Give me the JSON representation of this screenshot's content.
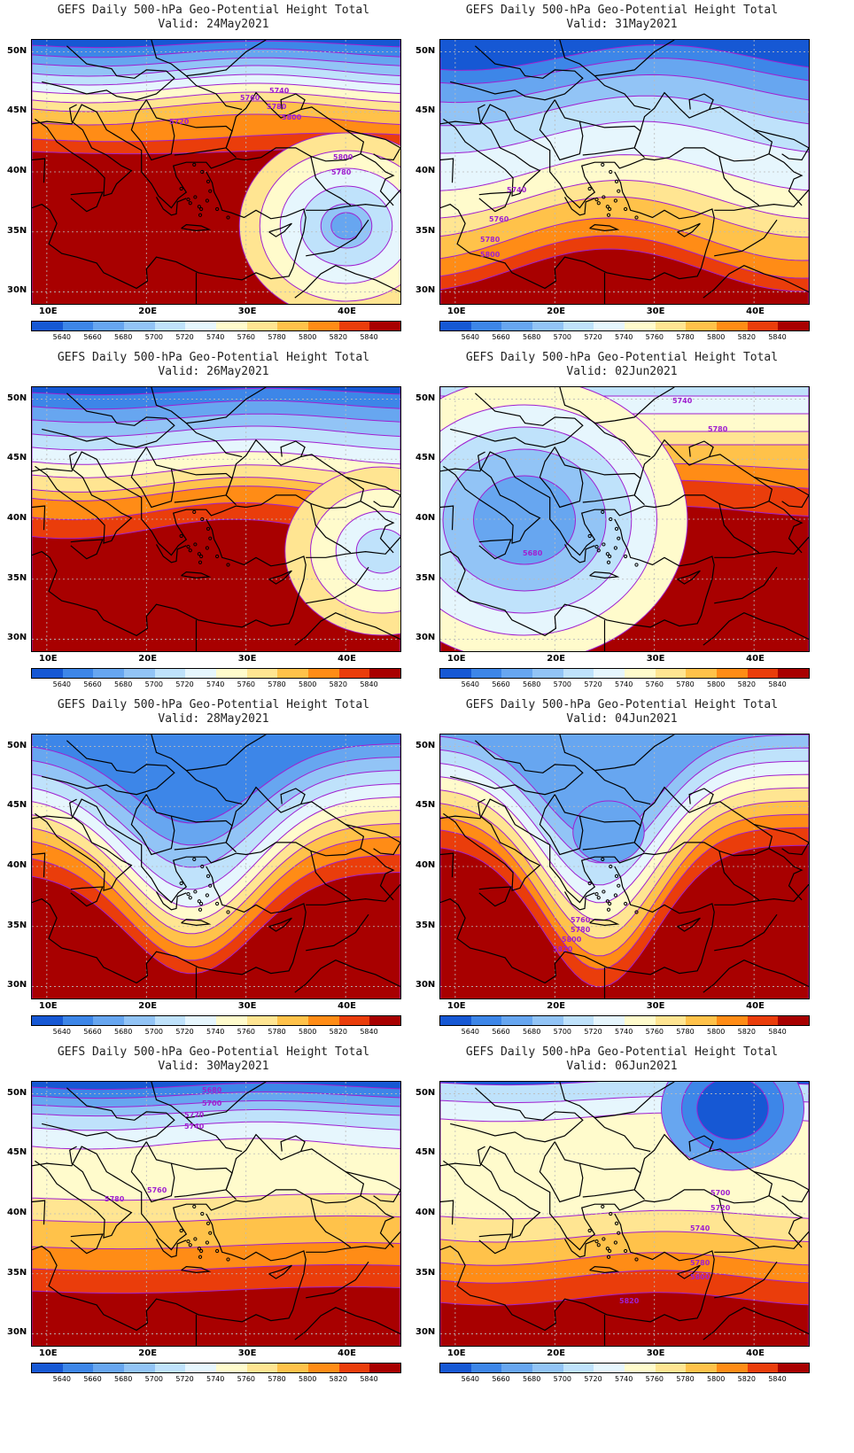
{
  "colors": [
    "#1658d4",
    "#3d86e8",
    "#67a6f0",
    "#92c4f6",
    "#bfe2fb",
    "#e6f6fd",
    "#fffbcc",
    "#ffe592",
    "#ffc24a",
    "#ff8c16",
    "#ea3d0b",
    "#a80000"
  ],
  "colorbar_labels": [
    "5640",
    "5660",
    "5680",
    "5700",
    "5720",
    "5740",
    "5760",
    "5780",
    "5800",
    "5820",
    "5840"
  ],
  "lat_labels": [
    "50N",
    "45N",
    "40N",
    "35N",
    "30N"
  ],
  "lon_labels": [
    "10E",
    "20E",
    "30E",
    "40E"
  ],
  "panels": [
    {
      "title": "GEFS Daily 500-hPa Geo-Potential Height Total",
      "valid": "Valid: 24May2021",
      "contour_labels": [
        "5740",
        "5760",
        "5780",
        "5800",
        "5720",
        "5800",
        "5780"
      ]
    },
    {
      "title": "GEFS Daily 500-hPa Geo-Potential Height Total",
      "valid": "Valid: 31May2021",
      "contour_labels": [
        "5740",
        "5760",
        "5780",
        "5800"
      ]
    },
    {
      "title": "GEFS Daily 500-hPa Geo-Potential Height Total",
      "valid": "Valid: 26May2021",
      "contour_labels": []
    },
    {
      "title": "GEFS Daily 500-hPa Geo-Potential Height Total",
      "valid": "Valid: 02Jun2021",
      "contour_labels": [
        "5740",
        "5780",
        "5680"
      ]
    },
    {
      "title": "GEFS Daily 500-hPa Geo-Potential Height Total",
      "valid": "Valid: 28May2021",
      "contour_labels": []
    },
    {
      "title": "GEFS Daily 500-hPa Geo-Potential Height Total",
      "valid": "Valid: 04Jun2021",
      "contour_labels": [
        "5760",
        "5780",
        "5800",
        "5820"
      ]
    },
    {
      "title": "GEFS Daily 500-hPa Geo-Potential Height Total",
      "valid": "Valid: 30May2021",
      "contour_labels": [
        "5680",
        "5700",
        "5720",
        "5740",
        "5760",
        "5780"
      ]
    },
    {
      "title": "GEFS Daily 500-hPa Geo-Potential Height Total",
      "valid": "Valid: 06Jun2021",
      "contour_labels": [
        "5700",
        "5720",
        "5740",
        "5780",
        "5800",
        "5820"
      ]
    }
  ]
}
